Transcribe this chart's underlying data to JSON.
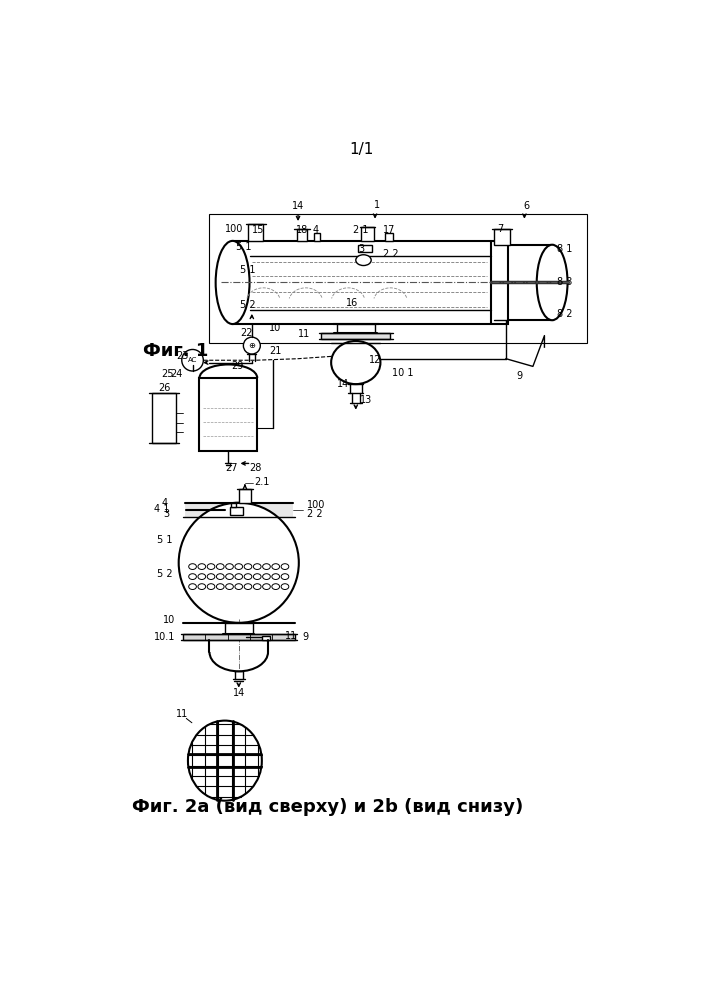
{
  "page_label": "1/1",
  "fig1_label": "Фиг. 1",
  "fig2_label": "Фиг. 2а (вид сверху) и 2b (вид снизу)",
  "bg_color": "#ffffff",
  "line_color": "#000000"
}
